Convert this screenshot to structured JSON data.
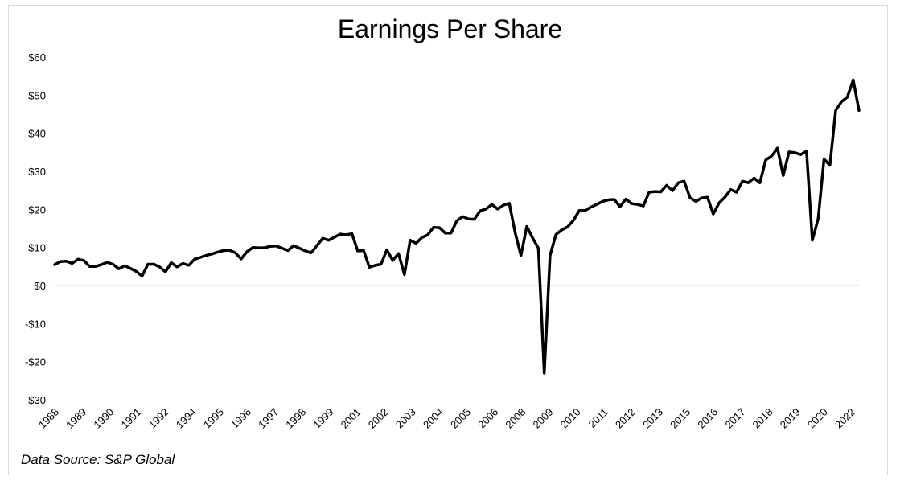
{
  "chart_data": {
    "type": "line",
    "title": "Earnings Per Share",
    "source": "Data Source: S&P Global",
    "xlabel": "",
    "ylabel": "",
    "ylim": [
      -30,
      60
    ],
    "yticks": [
      60,
      50,
      40,
      30,
      20,
      10,
      0,
      -10,
      -20,
      -30
    ],
    "ytick_labels": [
      "$60",
      "$50",
      "$40",
      "$30",
      "$20",
      "$10",
      "$0",
      "-$10",
      "-$20",
      "-$30"
    ],
    "xtick_labels": [
      "1988",
      "1989",
      "1990",
      "1991",
      "1992",
      "1994",
      "1995",
      "1996",
      "1997",
      "1998",
      "1999",
      "2001",
      "2002",
      "2003",
      "2004",
      "2005",
      "2006",
      "2008",
      "2009",
      "2010",
      "2011",
      "2012",
      "2013",
      "2015",
      "2016",
      "2017",
      "2018",
      "2019",
      "2020",
      "2022"
    ],
    "line_color": "#000000",
    "zero_line_color": "#d9d9d9",
    "series": [
      {
        "values": [
          5.5,
          6.3,
          6.4,
          5.8,
          6.9,
          6.6,
          5.0,
          5.0,
          5.5,
          6.1,
          5.6,
          4.4,
          5.2,
          4.5,
          3.7,
          2.5,
          5.6,
          5.6,
          4.9,
          3.6,
          6.0,
          4.9,
          5.8,
          5.3,
          6.9,
          7.4,
          7.9,
          8.3,
          8.8,
          9.2,
          9.3,
          8.6,
          7.0,
          8.9,
          10.0,
          9.9,
          9.9,
          10.3,
          10.4,
          9.8,
          9.2,
          10.5,
          9.8,
          9.1,
          8.6,
          10.5,
          12.4,
          11.9,
          12.7,
          13.5,
          13.3,
          13.6,
          9.1,
          9.2,
          4.8,
          5.3,
          5.6,
          9.4,
          6.6,
          8.4,
          2.9,
          11.9,
          11.1,
          12.6,
          13.3,
          15.3,
          15.2,
          13.8,
          13.8,
          17.0,
          18.1,
          17.5,
          17.4,
          19.6,
          20.1,
          21.3,
          20.1,
          21.1,
          21.6,
          13.9,
          7.9,
          15.5,
          12.5,
          9.8,
          -23.0,
          7.9,
          13.4,
          14.6,
          15.4,
          17.1,
          19.7,
          19.7,
          20.6,
          21.3,
          22.1,
          22.5,
          22.6,
          20.7,
          22.7,
          21.5,
          21.3,
          20.9,
          24.5,
          24.7,
          24.6,
          26.3,
          24.9,
          27.0,
          27.4,
          23.1,
          22.1,
          23.0,
          23.2,
          18.8,
          21.7,
          23.2,
          25.2,
          24.5,
          27.4,
          27.0,
          28.2,
          27.0,
          33.0,
          34.0,
          36.1,
          28.9,
          35.1,
          34.9,
          34.4,
          35.3,
          11.9,
          17.6,
          33.2,
          31.6,
          46.0,
          48.3,
          49.5,
          54.0,
          46.0
        ]
      }
    ]
  }
}
